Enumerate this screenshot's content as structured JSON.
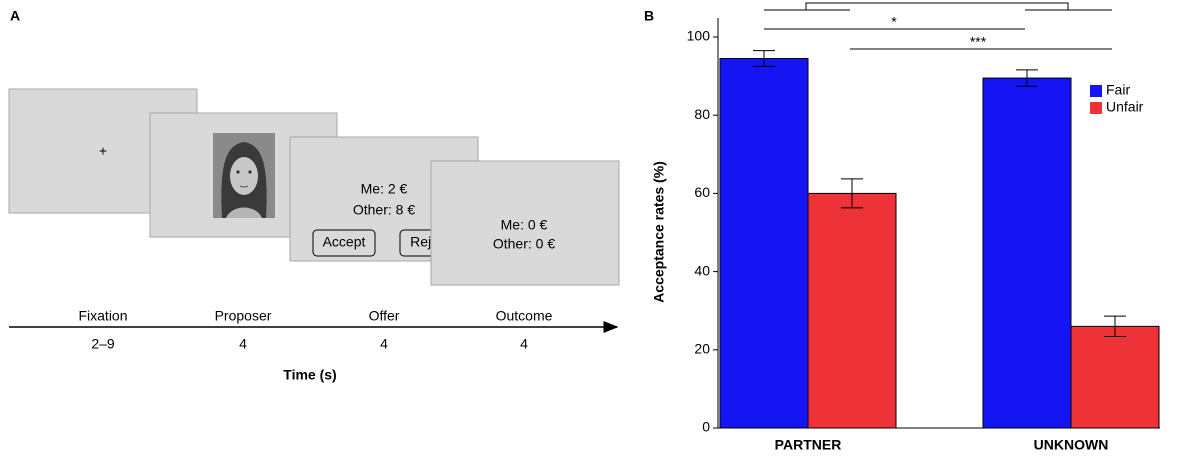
{
  "panel_a": {
    "label": "A",
    "screens": [
      {
        "text": "+"
      },
      {},
      {
        "lines": [
          "Me: 2 €",
          "Other: 8 €"
        ],
        "buttons": [
          "Accept",
          "Reject"
        ]
      },
      {
        "lines": [
          "Me: 0 €",
          "Other: 0 €"
        ]
      }
    ],
    "phases": [
      {
        "name": "Fixation",
        "duration": "2–9"
      },
      {
        "name": "Proposer",
        "duration": "4"
      },
      {
        "name": "Offer",
        "duration": "4"
      },
      {
        "name": "Outcome",
        "duration": "4"
      }
    ],
    "axis_label": "Time (s)"
  },
  "chart_data": {
    "type": "bar",
    "panel_label": "B",
    "y_label": "Acceptance rates (%)",
    "categories": [
      "PARTNER",
      "UNKNOWN"
    ],
    "series": [
      {
        "name": "Fair",
        "color": "#1414f5",
        "values": [
          94.5,
          89.5
        ],
        "errors": [
          2,
          2.1
        ]
      },
      {
        "name": "Unfair",
        "color": "#ee3338",
        "values": [
          60,
          26
        ],
        "errors": [
          3.7,
          2.6
        ]
      }
    ],
    "ylim": [
      0,
      100
    ],
    "yticks": [
      0,
      20,
      40,
      60,
      80,
      100
    ],
    "annotations": [
      "*",
      "***"
    ],
    "legend": "upper right"
  }
}
